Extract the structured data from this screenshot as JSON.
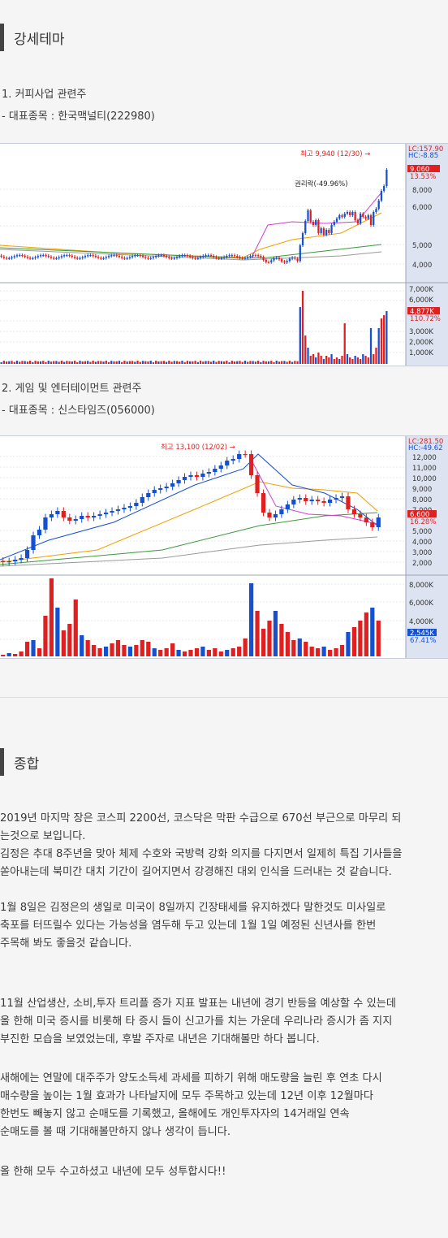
{
  "section1": {
    "title": "강세테마"
  },
  "theme1": {
    "heading": "1. 커피사업 관련주",
    "stock": "- 대표종목 : 한국맥널티(222980)",
    "chart": {
      "lc": "LC:157.90",
      "hc": "HC:-8.85",
      "high_label": "최고 9,940 (12/30) →",
      "event_label": "권리락(-49.96%)",
      "last_price": "9,060",
      "last_change": "13.53%",
      "vol_now": "4,877K",
      "vol_pct": "110.72%",
      "price_ticks": [
        "8,000",
        "6,000",
        "5,000",
        "4,000"
      ],
      "vol_ticks": [
        "7,000K",
        "6,000K",
        "5,000K",
        "3,000K",
        "2,000K",
        "1,000K"
      ]
    }
  },
  "theme2": {
    "heading": "2. 게임 및 엔터테이먼트 관련주",
    "stock": "- 대표종목 : 신스타임즈(056000)",
    "chart": {
      "lc": "LC:281.50",
      "hc": "HC:-49.62",
      "high_label": "최고 13,100 (12/02) →",
      "last_price": "6,600",
      "last_change": "16.28%",
      "vol_now": "2,545K",
      "vol_pct": "67.41%",
      "price_ticks": [
        "12,000",
        "11,000",
        "10,000",
        "9,000",
        "8,000",
        "7,000",
        "5,000",
        "4,000",
        "3,000",
        "2,000"
      ],
      "vol_ticks": [
        "8,000K",
        "6,000K",
        "4,000K"
      ]
    }
  },
  "section2": {
    "title": "종합"
  },
  "summary": [
    [
      "2019년 마지막 장은 코스피 2200선, 코스닥은 막판 수급으로 670선 부근으로 마무리 되",
      "는것으로 보입니다."
    ],
    [
      "김정은 추대 8주년을 맞아 체제 수호와 국방력 강화 의지를 다지면서 일제히 특집 기사들을",
      "쏟아내는데 북미간 대치 기간이 길어지면서 강경해진 대외 인식을 드러내는 것 같습니다."
    ],
    [
      "1월 8일은 김정은의 생일로 미국이 8일까지 긴장태세를 유지하겠다 말한것도 미사일로",
      "축포를 터뜨릴수 있다는 가능성을 염두해 두고 있는데 1월 1일 예정된 신년사를 한번",
      "주목해 봐도 좋을것 같습니다."
    ],
    [
      "11월 산업생산, 소비,투자 트리플 증가 지표 발표는 내년에 경기 반등을 예상할 수 있는데",
      "올 한해 미국 증시를 비롯해 타 증시 들이 신고가를 치는 가운데 우리나라 증시가 좀 지지",
      "부진한 모습을 보였었는데, 후발 주자로 내년은 기대해볼만 하다 봅니다."
    ],
    [
      "새해에는 연말에 대주주가 양도소득세 과세를 피하기 위해 매도량을 늘린 후 연초 다시",
      "매수량을 높이는 1월 효과가 나타날지에 모두 주목하고 있는데 12년 이후 12월마다",
      "한번도 빼놓지 않고 순매도를 기록했고, 올해에도 개인투자자의 14거래일 연속",
      "순매도를 볼 때 기대해볼만하지 않나 생각이 듭니다."
    ],
    [
      "올 한해 모두 수고하셨고 내년에 모두 성투합시다!!"
    ]
  ],
  "colors": {
    "up": "#e02020",
    "down": "#1550d0",
    "axis_bg": "#dde3f0",
    "accent_red": "#e02020",
    "accent_blue": "#1550d0"
  }
}
